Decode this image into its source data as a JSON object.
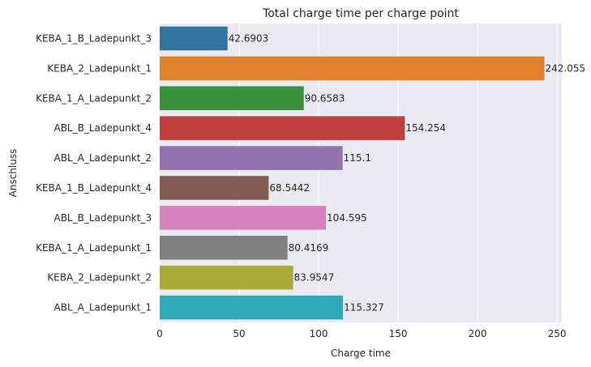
{
  "chart_data": {
    "type": "bar",
    "orientation": "horizontal",
    "title": "Total charge time per charge point",
    "xlabel": "Charge time",
    "ylabel": "Anschluss",
    "xlim": [
      0,
      253
    ],
    "xticks": [
      0,
      50,
      100,
      150,
      200,
      250
    ],
    "grid": true,
    "categories": [
      "KEBA_1_B_Ladepunkt_3",
      "KEBA_2_Ladepunkt_1",
      "KEBA_1_A_Ladepunkt_2",
      "ABL_B_Ladepunkt_4",
      "ABL_A_Ladepunkt_2",
      "KEBA_1_B_Ladepunkt_4",
      "ABL_B_Ladepunkt_3",
      "KEBA_1_A_Ladepunkt_1",
      "KEBA_2_Ladepunkt_2",
      "ABL_A_Ladepunkt_1"
    ],
    "values": [
      42.6903,
      242.055,
      90.6583,
      154.254,
      115.1,
      68.5442,
      104.595,
      80.4169,
      83.9547,
      115.327
    ],
    "value_labels": [
      "42.6903",
      "242.055",
      "90.6583",
      "154.254",
      "115.1",
      "68.5442",
      "104.595",
      "80.4169",
      "83.9547",
      "115.327"
    ],
    "colors": [
      "#3274a1",
      "#e1812c",
      "#3a923a",
      "#c03d3e",
      "#9372b2",
      "#845b53",
      "#d684bd",
      "#7f7f7f",
      "#a9aa35",
      "#2eabb8"
    ],
    "plot_background": "#eaeaf2",
    "grid_color": "#ffffff"
  }
}
